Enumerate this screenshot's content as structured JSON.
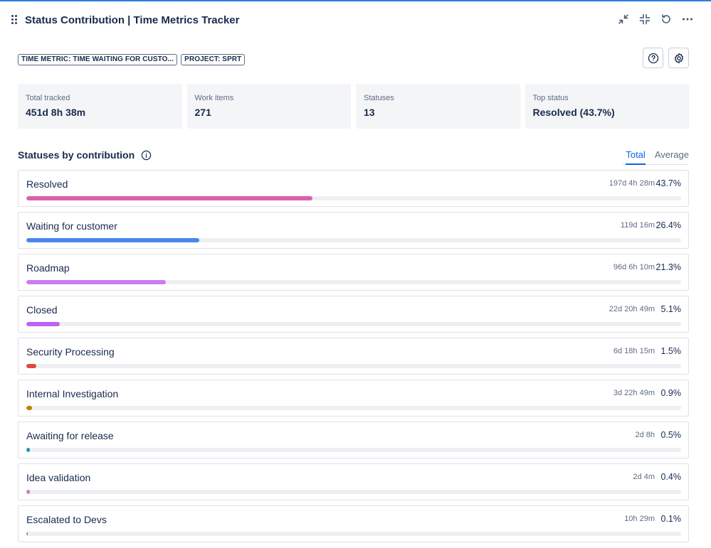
{
  "header": {
    "title": "Status Contribution | Time Metrics Tracker"
  },
  "tags": [
    "TIME METRIC: TIME WAITING FOR CUSTO...",
    "PROJECT: SPRT"
  ],
  "stats": [
    {
      "label": "Total tracked",
      "value": "451d 8h 38m"
    },
    {
      "label": "Work items",
      "value": "271"
    },
    {
      "label": "Statuses",
      "value": "13"
    },
    {
      "label": "Top status",
      "value": "Resolved (43.7%)"
    }
  ],
  "section": {
    "title": "Statuses by contribution"
  },
  "tabs": [
    {
      "label": "Total",
      "active": true
    },
    {
      "label": "Average",
      "active": false
    }
  ],
  "statuses": [
    {
      "name": "Resolved",
      "time": "197d 4h 28m",
      "percent": "43.7%",
      "fraction": 0.437,
      "color": "#da62ac"
    },
    {
      "name": "Waiting for customer",
      "time": "119d 16m",
      "percent": "26.4%",
      "fraction": 0.264,
      "color": "#4688ec"
    },
    {
      "name": "Roadmap",
      "time": "96d 6h 10m",
      "percent": "21.3%",
      "fraction": 0.213,
      "color": "#c97cf4"
    },
    {
      "name": "Closed",
      "time": "22d 20h 49m",
      "percent": "5.1%",
      "fraction": 0.051,
      "color": "#bf63f3"
    },
    {
      "name": "Security Processing",
      "time": "6d 18h 15m",
      "percent": "1.5%",
      "fraction": 0.015,
      "color": "#e2483d"
    },
    {
      "name": "Internal Investigation",
      "time": "3d 22h 49m",
      "percent": "0.9%",
      "fraction": 0.009,
      "color": "#b38600"
    },
    {
      "name": "Awaiting for release",
      "time": "2d 8h",
      "percent": "0.5%",
      "fraction": 0.005,
      "color": "#1d9aaa"
    },
    {
      "name": "Idea validation",
      "time": "2d 4m",
      "percent": "0.4%",
      "fraction": 0.004,
      "color": "#e774bb"
    },
    {
      "name": "Escalated to Devs",
      "time": "10h 29m",
      "percent": "0.1%",
      "fraction": 0.001,
      "color": "#8f9bb3"
    }
  ]
}
